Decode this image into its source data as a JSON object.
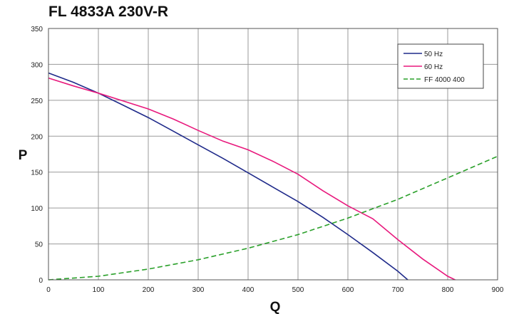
{
  "chart_data": {
    "type": "line",
    "title": "FL 4833A 230V-R",
    "xlabel": "Q",
    "ylabel": "P",
    "xlim": [
      0,
      900
    ],
    "ylim": [
      0,
      350
    ],
    "xticks": [
      "0",
      "100",
      "200",
      "300",
      "400",
      "500",
      "600",
      "700",
      "800",
      "900"
    ],
    "yticks": [
      "0",
      "50",
      "100",
      "150",
      "200",
      "250",
      "300",
      "350"
    ],
    "grid": true,
    "legend_position": "top-right",
    "series": [
      {
        "name": "50 Hz",
        "color": "#1f2a8a",
        "style": "solid",
        "x": [
          0,
          50,
          100,
          150,
          200,
          250,
          300,
          350,
          400,
          450,
          500,
          550,
          600,
          650,
          700,
          720
        ],
        "y": [
          288,
          275,
          260,
          243,
          226,
          207,
          188,
          169,
          149,
          129,
          109,
          87,
          63,
          38,
          12,
          0
        ]
      },
      {
        "name": "60 Hz",
        "color": "#e8197d",
        "style": "solid",
        "x": [
          0,
          50,
          100,
          150,
          200,
          250,
          300,
          350,
          400,
          450,
          500,
          550,
          600,
          650,
          700,
          750,
          800,
          815
        ],
        "y": [
          281,
          270,
          260,
          249,
          238,
          224,
          208,
          193,
          181,
          165,
          147,
          124,
          103,
          85,
          56,
          29,
          5,
          0
        ]
      },
      {
        "name": "FF 4000 400",
        "color": "#2aa02a",
        "style": "dashed",
        "x": [
          0,
          100,
          200,
          300,
          400,
          500,
          600,
          700,
          800,
          900
        ],
        "y": [
          0,
          5,
          15,
          28,
          44,
          63,
          86,
          112,
          142,
          172
        ]
      }
    ]
  }
}
